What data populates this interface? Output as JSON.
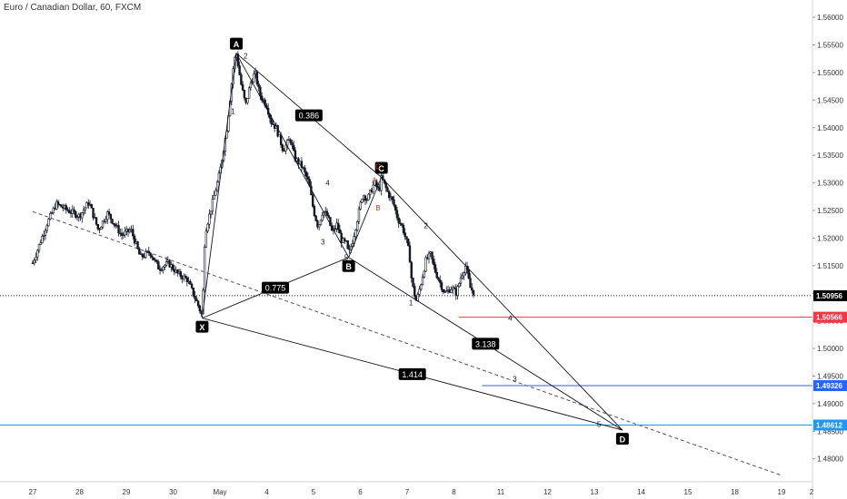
{
  "title": "Euro / Canadian Dollar, 60, FXCM",
  "colors": {
    "candle": "#131722",
    "line": "#131722",
    "dashed": "#555555",
    "label_bg": "#000000",
    "label_fg": "#ffffff",
    "wave_red": "#e0323c",
    "red_level": "#f23645",
    "blue_level": "#2962ff",
    "light_blue_level": "#2196f3",
    "axis_text": "#333333",
    "grid": "#e0e3eb"
  },
  "chart_data": {
    "type": "candlestick",
    "instrument": "Euro / Canadian Dollar",
    "interval": "60",
    "source": "FXCM",
    "y_axis": {
      "ticks": [
        "1.56000",
        "1.55500",
        "1.55000",
        "1.54500",
        "1.54000",
        "1.53500",
        "1.53000",
        "1.52500",
        "1.52000",
        "1.51500",
        "1.51000",
        "1.50500",
        "1.50000",
        "1.49500",
        "1.49000",
        "1.48500",
        "1.48000"
      ],
      "range": [
        1.4765,
        1.5615
      ]
    },
    "x_axis": {
      "ticks": [
        "27",
        "28",
        "29",
        "30",
        "May",
        "4",
        "5",
        "6",
        "7",
        "8",
        "11",
        "12",
        "13",
        "14",
        "15",
        "18",
        "19",
        "2"
      ]
    },
    "price_path": [
      [
        0,
        1.5155
      ],
      [
        0.3,
        1.5225
      ],
      [
        0.5,
        1.5262
      ],
      [
        0.8,
        1.5248
      ],
      [
        1.0,
        1.524
      ],
      [
        1.2,
        1.5265
      ],
      [
        1.4,
        1.5215
      ],
      [
        1.6,
        1.5245
      ],
      [
        1.9,
        1.5205
      ],
      [
        2.1,
        1.5215
      ],
      [
        2.3,
        1.5165
      ],
      [
        2.5,
        1.5175
      ],
      [
        2.7,
        1.5145
      ],
      [
        2.9,
        1.5155
      ],
      [
        3.1,
        1.5135
      ],
      [
        3.3,
        1.5125
      ],
      [
        3.45,
        1.5095
      ],
      [
        3.55,
        1.5075
      ],
      [
        3.62,
        1.5058
      ],
      [
        3.68,
        1.521
      ],
      [
        3.8,
        1.525
      ],
      [
        4.0,
        1.532
      ],
      [
        4.15,
        1.54
      ],
      [
        4.25,
        1.548
      ],
      [
        4.3,
        1.552
      ],
      [
        4.35,
        1.5535
      ],
      [
        4.45,
        1.548
      ],
      [
        4.55,
        1.544
      ],
      [
        4.65,
        1.548
      ],
      [
        4.75,
        1.55
      ],
      [
        4.85,
        1.546
      ],
      [
        5.0,
        1.544
      ],
      [
        5.1,
        1.541
      ],
      [
        5.2,
        1.54
      ],
      [
        5.35,
        1.536
      ],
      [
        5.5,
        1.538
      ],
      [
        5.6,
        1.5345
      ],
      [
        5.75,
        1.533
      ],
      [
        5.9,
        1.53
      ],
      [
        6.0,
        1.525
      ],
      [
        6.1,
        1.522
      ],
      [
        6.2,
        1.525
      ],
      [
        6.3,
        1.524
      ],
      [
        6.4,
        1.521
      ],
      [
        6.5,
        1.5225
      ],
      [
        6.6,
        1.5195
      ],
      [
        6.7,
        1.519
      ],
      [
        6.75,
        1.517
      ],
      [
        6.85,
        1.52
      ],
      [
        6.95,
        1.524
      ],
      [
        7.05,
        1.528
      ],
      [
        7.15,
        1.527
      ],
      [
        7.3,
        1.53
      ],
      [
        7.4,
        1.5285
      ],
      [
        7.45,
        1.531
      ],
      [
        7.5,
        1.53
      ],
      [
        7.6,
        1.528
      ],
      [
        7.7,
        1.5265
      ],
      [
        7.8,
        1.5235
      ],
      [
        7.9,
        1.522
      ],
      [
        8.0,
        1.519
      ],
      [
        8.05,
        1.517
      ],
      [
        8.1,
        1.512
      ],
      [
        8.15,
        1.51
      ],
      [
        8.2,
        1.5085
      ],
      [
        8.3,
        1.512
      ],
      [
        8.4,
        1.516
      ],
      [
        8.5,
        1.517
      ],
      [
        8.6,
        1.514
      ],
      [
        8.7,
        1.512
      ],
      [
        8.8,
        1.51
      ],
      [
        8.95,
        1.511
      ],
      [
        9.05,
        1.51
      ],
      [
        9.15,
        1.513
      ],
      [
        9.25,
        1.515
      ],
      [
        9.35,
        1.511
      ],
      [
        9.45,
        1.5098
      ]
    ],
    "harmonic_pattern": {
      "points": {
        "X": {
          "label": "X",
          "x": 3.62,
          "y": 1.5055
        },
        "A": {
          "label": "A",
          "x": 4.35,
          "y": 1.5535
        },
        "B": {
          "label": "B",
          "x": 6.75,
          "y": 1.5165
        },
        "C": {
          "label": "C",
          "x": 7.45,
          "y": 1.531
        },
        "D": {
          "label": "D",
          "x": 12.6,
          "y": 1.4852
        }
      },
      "ratios": [
        {
          "text": "0.386",
          "from": "A",
          "to": "C"
        },
        {
          "text": "0.775",
          "from": "X",
          "to": "B"
        },
        {
          "text": "3.138",
          "from": "B",
          "to": "D"
        },
        {
          "text": "1.414",
          "from": "X",
          "to": "D"
        }
      ]
    },
    "wave_labels": [
      {
        "text": "1",
        "x": 4.28,
        "y": 1.5425,
        "color": "black"
      },
      {
        "text": "2",
        "x": 4.55,
        "y": 1.5525,
        "color": "black"
      },
      {
        "text": "3",
        "x": 6.2,
        "y": 1.5188,
        "color": "black"
      },
      {
        "text": "4",
        "x": 6.3,
        "y": 1.5295,
        "color": "black"
      },
      {
        "text": "5",
        "x": 6.7,
        "y": 1.516,
        "color": "black"
      },
      {
        "text": "A",
        "x": 7.3,
        "y": 1.53,
        "color": "red"
      },
      {
        "text": "B",
        "x": 7.38,
        "y": 1.525,
        "color": "red"
      },
      {
        "text": "C",
        "x": 7.38,
        "y": 1.5325,
        "color": "red"
      },
      {
        "text": "2",
        "x": 8.4,
        "y": 1.5218,
        "color": "black"
      },
      {
        "text": "1",
        "x": 8.08,
        "y": 1.5078,
        "color": "black"
      },
      {
        "text": "4",
        "x": 10.2,
        "y": 1.505,
        "color": "black"
      },
      {
        "text": "3",
        "x": 10.3,
        "y": 1.494,
        "color": "black"
      },
      {
        "text": "5",
        "x": 12.1,
        "y": 1.4858,
        "color": "black"
      }
    ],
    "horizontal_levels": [
      {
        "price": 1.50956,
        "label": "1.50956",
        "style": "dotted",
        "color": "black"
      },
      {
        "price": 1.50566,
        "label": "1.50566",
        "style": "solid",
        "color": "red"
      },
      {
        "price": 1.49326,
        "label": "1.49326",
        "style": "solid",
        "color": "blue"
      },
      {
        "price": 1.48612,
        "label": "1.48612",
        "style": "solid",
        "color": "light-blue"
      }
    ],
    "trendline": {
      "style": "dashed",
      "from": {
        "x": 0,
        "y": 1.5248
      },
      "to": {
        "x": 16.0,
        "y": 1.477
      }
    },
    "grid": false
  }
}
